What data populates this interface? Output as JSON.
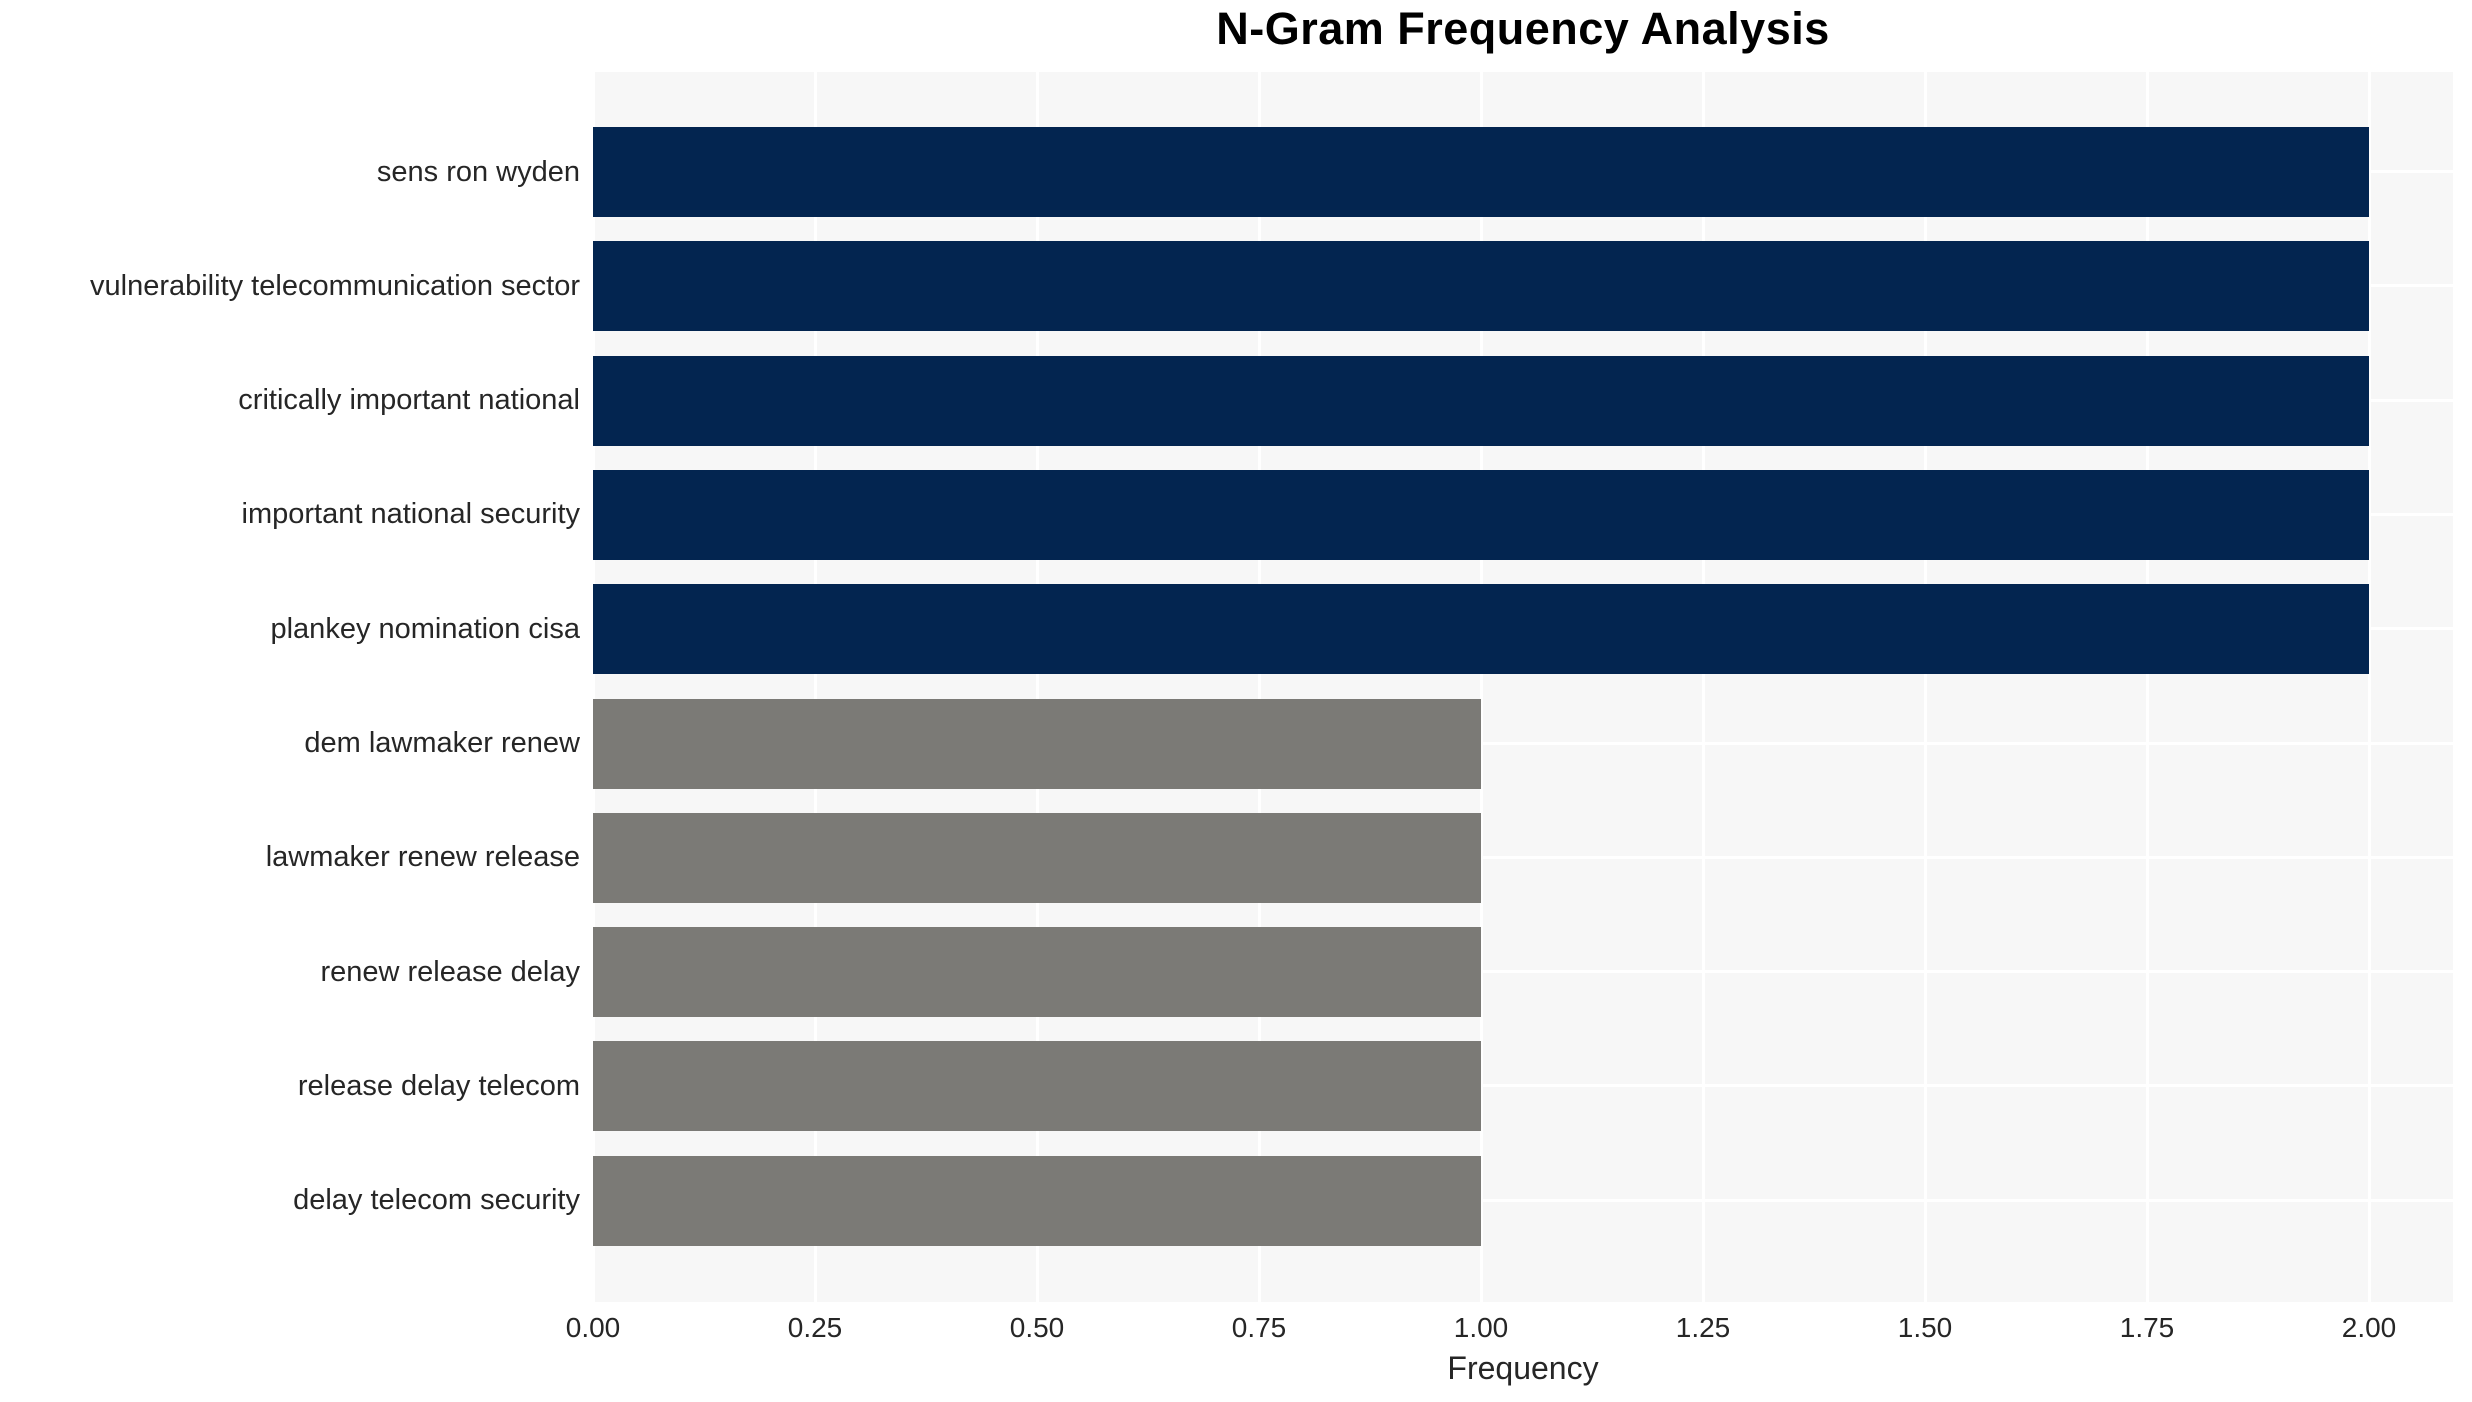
{
  "colors": {
    "bar_high": "#032550",
    "bar_low": "#7b7a76",
    "plot_background": "#f7f7f7",
    "gridline": "#ffffff",
    "tick_text": "#262626",
    "title_text": "#000000",
    "page_background": "#ffffff"
  },
  "chart_data": {
    "type": "bar",
    "orientation": "horizontal",
    "title": "N-Gram Frequency Analysis",
    "xlabel": "Frequency",
    "ylabel": "",
    "categories": [
      "sens ron wyden",
      "vulnerability telecommunication sector",
      "critically important national",
      "important national security",
      "plankey nomination cisa",
      "dem lawmaker renew",
      "lawmaker renew release",
      "renew release delay",
      "release delay telecom",
      "delay telecom security"
    ],
    "values": [
      2,
      2,
      2,
      2,
      2,
      1,
      1,
      1,
      1,
      1
    ],
    "bar_colors": [
      "#032550",
      "#032550",
      "#032550",
      "#032550",
      "#032550",
      "#7b7a76",
      "#7b7a76",
      "#7b7a76",
      "#7b7a76",
      "#7b7a76"
    ],
    "xlim": [
      0,
      2.09
    ],
    "xticks": [
      "0.00",
      "0.25",
      "0.50",
      "0.75",
      "1.00",
      "1.25",
      "1.50",
      "1.75",
      "2.00"
    ],
    "xtick_values": [
      0,
      0.25,
      0.5,
      0.75,
      1.0,
      1.25,
      1.5,
      1.75,
      2.0
    ],
    "grid": "white vertical gridlines at each x tick and white horizontal gridlines at each bar center, drawn on light gray panel",
    "legend": "none"
  }
}
